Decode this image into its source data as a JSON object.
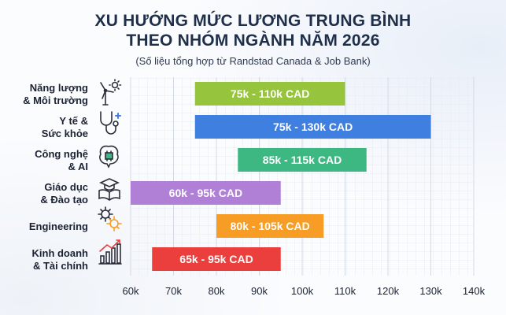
{
  "title_line1": "XU HƯỚNG MỨC LƯƠNG TRUNG BÌNH",
  "title_line2": "THEO NHÓM NGÀNH NĂM 2026",
  "subtitle": "(Số liệu tổng hợp từ Randstad Canada & Job Bank)",
  "chart_data": {
    "type": "bar",
    "orientation": "horizontal-range",
    "xlim": [
      60,
      140
    ],
    "xticks": [
      "60k",
      "70k",
      "80k",
      "90k",
      "100k",
      "110k",
      "120k",
      "130k",
      "140k"
    ],
    "xtick_values": [
      60,
      70,
      80,
      90,
      100,
      110,
      120,
      130,
      140
    ],
    "grid": true,
    "categories": [
      {
        "label_lines": [
          "Năng lượng",
          "& Môi trường"
        ],
        "low": 75,
        "high": 110,
        "value_label": "75k - 110k CAD",
        "color": "#96c43c",
        "icon": "wind-turbine-sun-icon"
      },
      {
        "label_lines": [
          "Y tế &",
          "Sức khỏe"
        ],
        "low": 75,
        "high": 130,
        "value_label": "75k - 130k CAD",
        "color": "#3f7fe0",
        "icon": "stethoscope-icon"
      },
      {
        "label_lines": [
          "Công nghệ",
          "& AI"
        ],
        "low": 85,
        "high": 115,
        "value_label": "85k - 115k CAD",
        "color": "#3db882",
        "icon": "brain-chip-icon"
      },
      {
        "label_lines": [
          "Giáo dục",
          "& Đào tạo"
        ],
        "low": 60,
        "high": 95,
        "value_label": "60k - 95k CAD",
        "color": "#b07fd6",
        "icon": "graduation-book-icon"
      },
      {
        "label_lines": [
          "Engineering"
        ],
        "low": 80,
        "high": 105,
        "value_label": "80k - 105k CAD",
        "color": "#f79d25",
        "icon": "gears-icon"
      },
      {
        "label_lines": [
          "Kinh doanh",
          "& Tài chính"
        ],
        "low": 65,
        "high": 95,
        "value_label": "65k - 95k CAD",
        "color": "#ea3f3c",
        "icon": "growth-chart-icon"
      }
    ]
  }
}
